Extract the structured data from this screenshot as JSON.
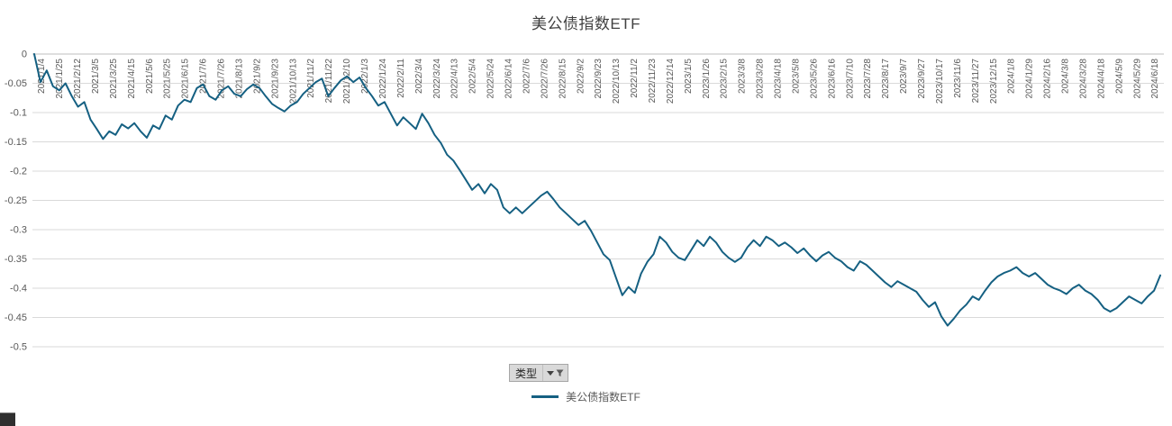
{
  "title": "美公债指数ETF",
  "filter_button": {
    "label": "类型"
  },
  "legend": {
    "label": "美公债指数ETF"
  },
  "chart_data": {
    "type": "line",
    "title": "美公债指数ETF",
    "x_start": "2021/1/4",
    "x_end": "2024/6/18",
    "ylim": [
      -0.5,
      0
    ],
    "grid": "horizontal",
    "legend_position": "bottom",
    "colors": {
      "line": "#156082",
      "grid": "#d9d9d9",
      "axis": "#bfbfbf",
      "text": "#595959"
    },
    "y_tick_labels": [
      "0",
      "-0.05",
      "-0.1",
      "-0.15",
      "-0.2",
      "-0.25",
      "-0.3",
      "-0.35",
      "-0.4",
      "-0.45",
      "-0.5"
    ],
    "x_tick_labels": [
      "2021/1/4",
      "2021/1/25",
      "2021/2/12",
      "2021/3/5",
      "2021/3/25",
      "2021/4/15",
      "2021/5/6",
      "2021/5/25",
      "2021/6/15",
      "2021/7/6",
      "2021/7/26",
      "2021/8/13",
      "2021/9/2",
      "2021/9/23",
      "2021/10/13",
      "2021/11/2",
      "2021/11/22",
      "2021/12/10",
      "2022/1/3",
      "2022/1/24",
      "2022/2/11",
      "2022/3/4",
      "2022/3/24",
      "2022/4/13",
      "2022/5/4",
      "2022/5/24",
      "2022/6/14",
      "2022/7/6",
      "2022/7/26",
      "2022/8/15",
      "2022/9/2",
      "2022/9/23",
      "2022/10/13",
      "2022/11/2",
      "2022/11/23",
      "2022/12/14",
      "2023/1/5",
      "2023/1/26",
      "2023/2/15",
      "2023/3/8",
      "2023/3/28",
      "2023/4/18",
      "2023/5/8",
      "2023/5/26",
      "2023/6/16",
      "2023/7/10",
      "2023/7/28",
      "2023/8/17",
      "2023/9/7",
      "2023/9/27",
      "2023/10/17",
      "2023/11/6",
      "2023/11/27",
      "2023/12/15",
      "2024/1/8",
      "2024/1/29",
      "2024/2/16",
      "2024/3/8",
      "2024/3/28",
      "2024/4/18",
      "2024/5/9",
      "2024/5/29",
      "2024/6/18"
    ],
    "series": [
      {
        "name": "美公债指数ETF",
        "sampling": "weekly",
        "values": [
          0.0,
          -0.048,
          -0.028,
          -0.055,
          -0.062,
          -0.05,
          -0.072,
          -0.09,
          -0.082,
          -0.112,
          -0.128,
          -0.145,
          -0.132,
          -0.138,
          -0.12,
          -0.127,
          -0.118,
          -0.132,
          -0.143,
          -0.122,
          -0.128,
          -0.105,
          -0.112,
          -0.088,
          -0.078,
          -0.082,
          -0.058,
          -0.052,
          -0.072,
          -0.078,
          -0.062,
          -0.055,
          -0.068,
          -0.072,
          -0.06,
          -0.052,
          -0.058,
          -0.072,
          -0.085,
          -0.092,
          -0.098,
          -0.088,
          -0.082,
          -0.068,
          -0.058,
          -0.048,
          -0.042,
          -0.072,
          -0.058,
          -0.045,
          -0.038,
          -0.048,
          -0.04,
          -0.058,
          -0.072,
          -0.088,
          -0.082,
          -0.102,
          -0.122,
          -0.108,
          -0.118,
          -0.128,
          -0.102,
          -0.118,
          -0.138,
          -0.152,
          -0.172,
          -0.182,
          -0.198,
          -0.215,
          -0.232,
          -0.222,
          -0.238,
          -0.222,
          -0.232,
          -0.262,
          -0.272,
          -0.262,
          -0.272,
          -0.262,
          -0.252,
          -0.242,
          -0.235,
          -0.248,
          -0.262,
          -0.272,
          -0.282,
          -0.292,
          -0.285,
          -0.302,
          -0.322,
          -0.342,
          -0.352,
          -0.382,
          -0.412,
          -0.398,
          -0.408,
          -0.375,
          -0.355,
          -0.342,
          -0.312,
          -0.322,
          -0.338,
          -0.348,
          -0.352,
          -0.335,
          -0.318,
          -0.328,
          -0.312,
          -0.322,
          -0.338,
          -0.348,
          -0.355,
          -0.348,
          -0.33,
          -0.318,
          -0.328,
          -0.312,
          -0.318,
          -0.328,
          -0.322,
          -0.33,
          -0.34,
          -0.332,
          -0.344,
          -0.354,
          -0.344,
          -0.338,
          -0.348,
          -0.354,
          -0.364,
          -0.37,
          -0.354,
          -0.36,
          -0.37,
          -0.38,
          -0.39,
          -0.398,
          -0.388,
          -0.394,
          -0.4,
          -0.406,
          -0.42,
          -0.432,
          -0.424,
          -0.448,
          -0.464,
          -0.452,
          -0.438,
          -0.428,
          -0.414,
          -0.42,
          -0.404,
          -0.39,
          -0.38,
          -0.374,
          -0.37,
          -0.364,
          -0.374,
          -0.38,
          -0.374,
          -0.384,
          -0.394,
          -0.4,
          -0.404,
          -0.41,
          -0.4,
          -0.394,
          -0.404,
          -0.41,
          -0.42,
          -0.434,
          -0.44,
          -0.434,
          -0.424,
          -0.414,
          -0.42,
          -0.426,
          -0.414,
          -0.404,
          -0.378
        ]
      }
    ]
  }
}
